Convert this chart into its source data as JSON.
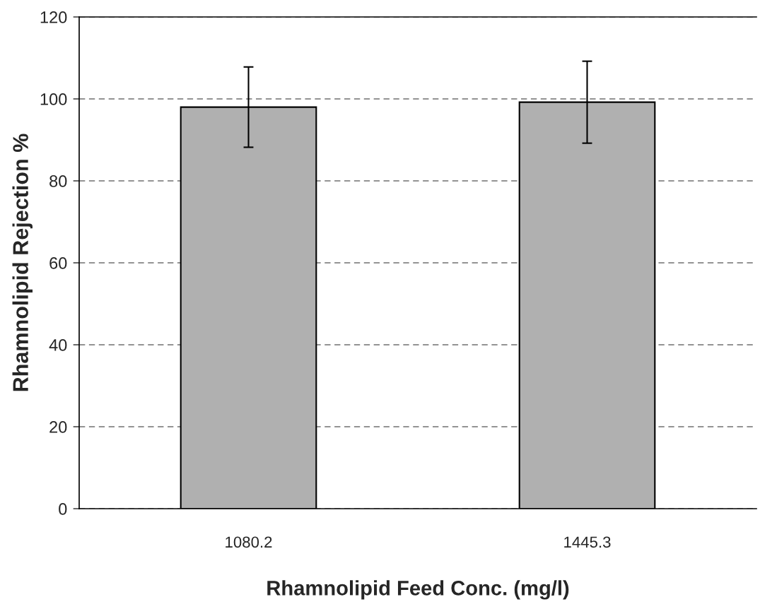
{
  "chart_data": {
    "type": "bar",
    "xlabel": "Rhamnolipid Feed Conc. (mg/l)",
    "ylabel": "Rhamnolipid Rejection %",
    "categories": [
      "1080.2",
      "1445.3"
    ],
    "values": [
      98,
      99.2
    ],
    "errors": [
      9.8,
      10
    ],
    "color": "#b0b0b0",
    "ylim": [
      0,
      120
    ],
    "yticks": [
      0,
      20,
      40,
      60,
      80,
      100,
      120
    ],
    "grid": "y"
  }
}
